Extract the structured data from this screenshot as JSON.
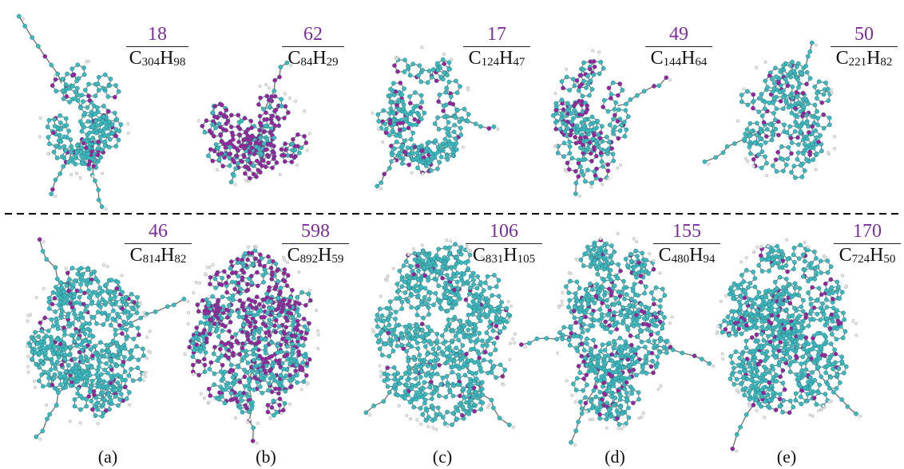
{
  "colors": {
    "carbon": "#3fb8bd",
    "carbon_dark": "#1e7f86",
    "defect": "#a21c9b",
    "hydrogen": "#e6e6e6",
    "bond": "#777777",
    "number": "#7b2d9b",
    "divider": "#000000"
  },
  "top_row": [
    {
      "count": "18",
      "formula": {
        "c": "C",
        "c_sub": "304",
        "h": "H",
        "h_sub": "98"
      }
    },
    {
      "count": "62",
      "formula": {
        "c": "C",
        "c_sub": "84",
        "h": "H",
        "h_sub": "29"
      }
    },
    {
      "count": "17",
      "formula": {
        "c": "C",
        "c_sub": "124",
        "h": "H",
        "h_sub": "47"
      }
    },
    {
      "count": "49",
      "formula": {
        "c": "C",
        "c_sub": "144",
        "h": "H",
        "h_sub": "64"
      }
    },
    {
      "count": "50",
      "formula": {
        "c": "C",
        "c_sub": "221",
        "h": "H",
        "h_sub": "82"
      }
    }
  ],
  "bottom_row": [
    {
      "count": "46",
      "formula": {
        "c": "C",
        "c_sub": "814",
        "h": "H",
        "h_sub": "82"
      }
    },
    {
      "count": "598",
      "formula": {
        "c": "C",
        "c_sub": "892",
        "h": "H",
        "h_sub": "59"
      }
    },
    {
      "count": "106",
      "formula": {
        "c": "C",
        "c_sub": "831",
        "h": "H",
        "h_sub": "105"
      }
    },
    {
      "count": "155",
      "formula": {
        "c": "C",
        "c_sub": "480",
        "h": "H",
        "h_sub": "94"
      }
    },
    {
      "count": "170",
      "formula": {
        "c": "C",
        "c_sub": "724",
        "h": "H",
        "h_sub": "50"
      }
    }
  ],
  "captions": [
    "(a)",
    "(b)",
    "(c)",
    "(d)",
    "(e)"
  ]
}
